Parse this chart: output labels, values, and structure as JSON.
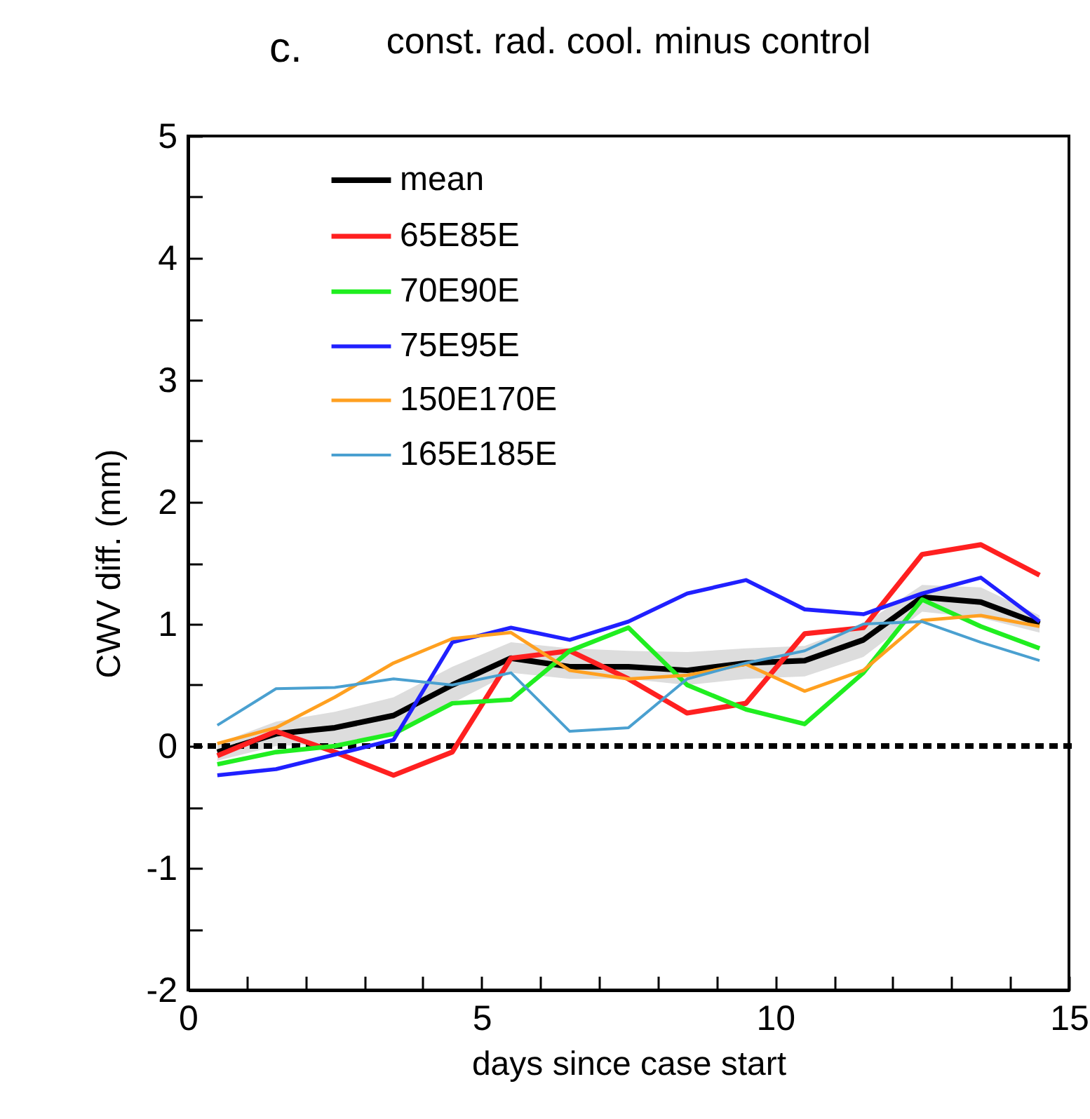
{
  "chart_data": {
    "type": "line",
    "title": "const. rad. cool. minus control",
    "xlabel": "days since case start",
    "ylabel": "CWV diff. (mm)",
    "annotations": [
      "c."
    ],
    "x": [
      0.5,
      1.5,
      2.5,
      3.5,
      4.5,
      5.5,
      6.5,
      7.5,
      8.5,
      9.5,
      10.5,
      11.5,
      12.5,
      13.5,
      14.5
    ],
    "xlim": [
      0,
      15
    ],
    "xticks": [
      0,
      {
        "value": 1,
        "label": null
      },
      {
        "value": 2,
        "label": null
      },
      {
        "value": 3,
        "label": null
      },
      {
        "value": 4,
        "label": null
      },
      5,
      {
        "value": 6,
        "label": null
      },
      {
        "value": 7,
        "label": null
      },
      {
        "value": 8,
        "label": null
      },
      {
        "value": 9,
        "label": null
      },
      10,
      {
        "value": 11,
        "label": null
      },
      {
        "value": 12,
        "label": null
      },
      {
        "value": 13,
        "label": null
      },
      {
        "value": 14,
        "label": null
      },
      15
    ],
    "ylim": [
      -2,
      5
    ],
    "yticks": [
      -2,
      {
        "value": -1.5,
        "label": null
      },
      -1,
      {
        "value": -0.5,
        "label": null
      },
      0,
      {
        "value": 0.5,
        "label": null
      },
      1,
      {
        "value": 1.5,
        "label": null
      },
      2,
      {
        "value": 2.5,
        "label": null
      },
      3,
      {
        "value": 3.5,
        "label": null
      },
      4,
      {
        "value": 4.5,
        "label": null
      },
      5
    ],
    "legend": "top left",
    "grid": false,
    "marker": "none",
    "ref_lines": [
      {
        "axis": "y",
        "value": 0,
        "color": "#000000",
        "line_style": "dotted"
      }
    ],
    "series": [
      {
        "name": "mean",
        "color": "#000000",
        "values": [
          -0.05,
          0.1,
          0.15,
          0.25,
          0.5,
          0.72,
          0.65,
          0.65,
          0.62,
          0.68,
          0.7,
          0.87,
          1.22,
          1.18,
          1.0
        ],
        "lower": [
          -0.12,
          0.0,
          0.02,
          0.1,
          0.35,
          0.6,
          0.55,
          0.55,
          0.5,
          0.55,
          0.57,
          0.73,
          1.1,
          1.05,
          0.93
        ],
        "upper": [
          0.02,
          0.2,
          0.28,
          0.4,
          0.65,
          0.85,
          0.8,
          0.78,
          0.77,
          0.8,
          0.82,
          1.0,
          1.32,
          1.3,
          1.07
        ]
      },
      {
        "name": "65E85E",
        "color": "#ff2020",
        "values": [
          -0.08,
          0.12,
          -0.05,
          -0.24,
          -0.05,
          0.72,
          0.78,
          0.55,
          0.27,
          0.35,
          0.92,
          0.97,
          1.57,
          1.65,
          1.4
        ]
      },
      {
        "name": "70E90E",
        "color": "#20ee20",
        "values": [
          -0.15,
          -0.05,
          0.0,
          0.1,
          0.35,
          0.38,
          0.78,
          0.97,
          0.5,
          0.3,
          0.18,
          0.6,
          1.2,
          0.98,
          0.8
        ]
      },
      {
        "name": "75E95E",
        "color": "#2020ff",
        "values": [
          -0.24,
          -0.19,
          -0.07,
          0.05,
          0.85,
          0.97,
          0.87,
          1.02,
          1.25,
          1.36,
          1.12,
          1.08,
          1.25,
          1.38,
          1.02
        ]
      },
      {
        "name": "150E170E",
        "color": "#ffa020",
        "values": [
          0.02,
          0.15,
          0.4,
          0.68,
          0.88,
          0.93,
          0.62,
          0.55,
          0.58,
          0.67,
          0.45,
          0.62,
          1.03,
          1.07,
          0.98
        ]
      },
      {
        "name": "165E185E",
        "color": "#4aa0d0",
        "values": [
          0.17,
          0.47,
          0.48,
          0.55,
          0.5,
          0.6,
          0.12,
          0.15,
          0.55,
          0.68,
          0.78,
          1.0,
          1.02,
          0.85,
          0.7
        ]
      }
    ]
  }
}
